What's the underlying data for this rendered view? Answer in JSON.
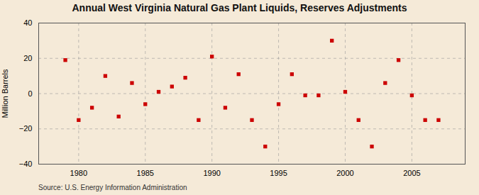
{
  "chart_data": {
    "type": "scatter",
    "title": "Annual West Virginia Natural Gas Plant Liquids, Reserves Adjustments",
    "ylabel": "Million Barrels",
    "source": "Source: U.S. Energy Information Administration",
    "x": [
      1979,
      1980,
      1981,
      1982,
      1983,
      1984,
      1985,
      1986,
      1987,
      1988,
      1989,
      1990,
      1991,
      1992,
      1993,
      1994,
      1995,
      1996,
      1997,
      1998,
      1999,
      2000,
      2001,
      2002,
      2003,
      2004,
      2005,
      2006,
      2007
    ],
    "values": [
      19,
      -15,
      -8,
      10,
      -13,
      6,
      -6,
      1,
      4,
      9,
      -15,
      21,
      -8,
      11,
      -15,
      -30,
      -6,
      11,
      -1,
      -1,
      30,
      1,
      -15,
      -30,
      6,
      19,
      -1,
      -15,
      -15
    ],
    "color": "#cc0000",
    "marker": "square",
    "xlim": [
      1977,
      2009
    ],
    "ylim": [
      -40,
      40
    ],
    "xticks": [
      1980,
      1985,
      1990,
      1995,
      2000,
      2005
    ],
    "yticks": [
      -40,
      -20,
      0,
      20,
      40
    ],
    "grid": true
  }
}
